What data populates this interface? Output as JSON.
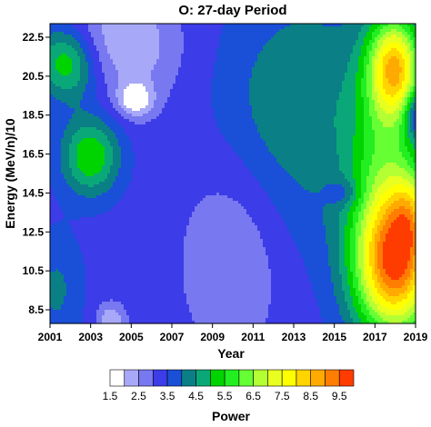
{
  "chart_data": {
    "type": "heatmap",
    "title": "O: 27-day Period",
    "xlabel": "Year",
    "ylabel": "Energy (MeV/n)/10",
    "x_ticks": [
      "2001",
      "2003",
      "2005",
      "2007",
      "2009",
      "2011",
      "2013",
      "2015",
      "2017",
      "2019"
    ],
    "y_ticks": [
      "8.5",
      "10.5",
      "12.5",
      "14.5",
      "16.5",
      "18.5",
      "20.5",
      "22.5"
    ],
    "xlim": [
      2001,
      2019
    ],
    "ylim": [
      7.8,
      23.2
    ],
    "colorbar": {
      "label": "Power",
      "tick_labels": [
        "1.5",
        "2.5",
        "3.5",
        "4.5",
        "5.5",
        "6.5",
        "7.5",
        "8.5",
        "9.5"
      ],
      "levels": [
        1.5,
        2.0,
        2.5,
        3.0,
        3.5,
        4.0,
        4.5,
        5.0,
        5.5,
        6.0,
        6.5,
        7.0,
        7.5,
        8.0,
        8.5,
        9.0,
        9.5,
        10.0
      ],
      "colors": [
        "#ffffff",
        "#a8a8f8",
        "#7878f0",
        "#3c3ce8",
        "#1a4fd8",
        "#0a7f86",
        "#0aa878",
        "#00d400",
        "#22ee22",
        "#66ff33",
        "#b4ff33",
        "#e8ff20",
        "#ffff00",
        "#ffd400",
        "#ffaa00",
        "#ff7d00",
        "#ff3c00"
      ]
    },
    "background_level": 3.3,
    "features": [
      {
        "x": 2002.0,
        "y": 21.0,
        "sx": 0.9,
        "sy": 1.3,
        "amp": 1.6
      },
      {
        "x": 2001.1,
        "y": 21.5,
        "sx": 0.9,
        "sy": 1.2,
        "amp": 0.7
      },
      {
        "x": 2003.0,
        "y": 16.4,
        "sx": 1.0,
        "sy": 1.4,
        "amp": 2.2
      },
      {
        "x": 2005.2,
        "y": 19.3,
        "sx": 0.6,
        "sy": 0.6,
        "amp": -1.6
      },
      {
        "x": 2005.2,
        "y": 21.5,
        "sx": 1.6,
        "sy": 2.0,
        "amp": -0.8
      },
      {
        "x": 2004.3,
        "y": 23.0,
        "sx": 1.8,
        "sy": 1.5,
        "amp": -0.6
      },
      {
        "x": 2010.0,
        "y": 11.0,
        "sx": 1.8,
        "sy": 3.5,
        "amp": -0.8
      },
      {
        "x": 2004.0,
        "y": 8.0,
        "sx": 0.5,
        "sy": 0.6,
        "amp": -1.2
      },
      {
        "x": 2001.3,
        "y": 9.5,
        "sx": 0.9,
        "sy": 2.0,
        "amp": 0.8
      },
      {
        "x": 2015.5,
        "y": 14.5,
        "sx": 0.6,
        "sy": 0.5,
        "amp": -0.8
      },
      {
        "x": 2014.0,
        "y": 18.5,
        "sx": 2.5,
        "sy": 5.0,
        "amp": 0.9
      },
      {
        "x": 2012.0,
        "y": 19.5,
        "sx": 2.2,
        "sy": 3.0,
        "amp": 0.4
      },
      {
        "x": 2018.0,
        "y": 10.8,
        "sx": 1.4,
        "sy": 2.6,
        "amp": 5.8
      },
      {
        "x": 2018.0,
        "y": 21.0,
        "sx": 0.9,
        "sy": 1.8,
        "amp": 4.3
      },
      {
        "x": 2017.5,
        "y": 16.5,
        "sx": 1.2,
        "sy": 4.0,
        "amp": 2.0
      },
      {
        "x": 2018.8,
        "y": 13.5,
        "sx": 0.7,
        "sy": 1.6,
        "amp": 1.8
      },
      {
        "x": 2019.0,
        "y": 18.5,
        "sx": 0.4,
        "sy": 0.8,
        "amp": -1.6
      }
    ]
  }
}
